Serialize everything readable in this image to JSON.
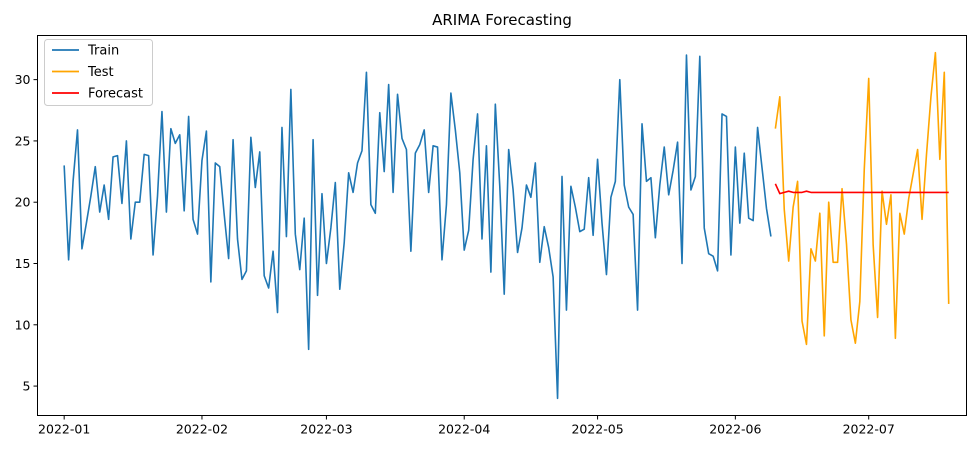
{
  "chart_data": {
    "type": "line",
    "title": "ARIMA Forecasting",
    "xlabel": "",
    "ylabel": "",
    "grid": false,
    "legend_placement": "top-left",
    "xlim": [
      "2021-12-26",
      "2022-07-23"
    ],
    "ylim": [
      2.6,
      33.6
    ],
    "x_ticks": [
      "2022-01",
      "2022-02",
      "2022-03",
      "2022-04",
      "2022-05",
      "2022-06",
      "2022-07"
    ],
    "x_tick_dates": [
      "2022-01-01",
      "2022-02-01",
      "2022-03-01",
      "2022-04-01",
      "2022-05-01",
      "2022-06-01",
      "2022-07-01"
    ],
    "y_ticks": [
      5,
      10,
      15,
      20,
      25,
      30
    ],
    "series": [
      {
        "name": "Train",
        "color": "#1f77b4",
        "start": "2022-01-01",
        "step_days": 1,
        "values": [
          23.0,
          15.3,
          21.7,
          25.9,
          16.2,
          18.3,
          20.5,
          22.9,
          19.2,
          21.4,
          18.6,
          23.7,
          23.8,
          19.9,
          25.0,
          17.0,
          20.0,
          20.0,
          23.9,
          23.8,
          15.7,
          20.5,
          27.4,
          19.2,
          26.0,
          24.8,
          25.5,
          19.3,
          27.0,
          18.6,
          17.4,
          23.4,
          25.8,
          13.5,
          23.2,
          22.9,
          19.0,
          15.4,
          25.1,
          17.0,
          13.7,
          14.4,
          25.3,
          21.2,
          24.1,
          14.0,
          13.0,
          16.0,
          11.0,
          26.1,
          17.2,
          29.2,
          17.4,
          14.5,
          18.7,
          8.0,
          25.1,
          12.4,
          20.7,
          15.0,
          17.9,
          21.6,
          12.9,
          16.7,
          22.4,
          20.8,
          23.2,
          24.2,
          30.6,
          19.8,
          19.1,
          27.3,
          22.5,
          29.6,
          20.8,
          28.8,
          25.2,
          24.3,
          16.0,
          24.0,
          24.7,
          25.9,
          20.8,
          24.6,
          24.5,
          15.3,
          19.8,
          28.9,
          25.9,
          22.4,
          16.1,
          17.7,
          23.5,
          27.2,
          17.0,
          24.6,
          14.3,
          28.0,
          21.3,
          12.5,
          24.3,
          21.0,
          15.9,
          17.9,
          21.4,
          20.4,
          23.2,
          15.1,
          18.0,
          16.3,
          13.9,
          4.0,
          22.1,
          11.2,
          21.3,
          19.6,
          17.6,
          17.8,
          22.0,
          17.3,
          23.5,
          18.3,
          14.1,
          20.4,
          21.7,
          30.0,
          21.4,
          19.6,
          19.0,
          11.2,
          26.4,
          21.7,
          22.0,
          17.1,
          21.4,
          24.5,
          20.6,
          22.6,
          24.9,
          15.0,
          32.0,
          21.0,
          22.1,
          31.9,
          17.9,
          15.8,
          15.6,
          14.4,
          27.2,
          27.0,
          15.7,
          24.5,
          18.3,
          24.0,
          18.7,
          18.5,
          26.1,
          22.8,
          19.5,
          17.2
        ]
      },
      {
        "name": "Test",
        "color": "#ffa500",
        "start": "2022-06-10",
        "step_days": 1,
        "values": [
          26.0,
          28.6,
          19.4,
          15.2,
          19.6,
          21.7,
          10.3,
          8.4,
          16.2,
          15.2,
          19.1,
          9.1,
          20.0,
          15.1,
          15.1,
          21.1,
          16.6,
          10.4,
          8.5,
          11.9,
          22.7,
          30.1,
          16.5,
          10.6,
          20.9,
          18.2,
          20.6,
          8.9,
          19.1,
          17.4,
          20.3,
          22.3,
          24.3,
          18.6,
          23.9,
          28.6,
          32.2,
          23.5,
          30.6,
          11.7
        ]
      },
      {
        "name": "Forecast",
        "color": "#ff0000",
        "start": "2022-06-10",
        "step_days": 1,
        "values": [
          21.5,
          20.7,
          20.8,
          20.9,
          20.8,
          20.8,
          20.8,
          20.9,
          20.8,
          20.8,
          20.8,
          20.8,
          20.8,
          20.8,
          20.8,
          20.8,
          20.8,
          20.8,
          20.8,
          20.8,
          20.8,
          20.8,
          20.8,
          20.8,
          20.8,
          20.8,
          20.8,
          20.8,
          20.8,
          20.8,
          20.8,
          20.8,
          20.8,
          20.8,
          20.8,
          20.8,
          20.8,
          20.8,
          20.8,
          20.8
        ]
      }
    ]
  }
}
